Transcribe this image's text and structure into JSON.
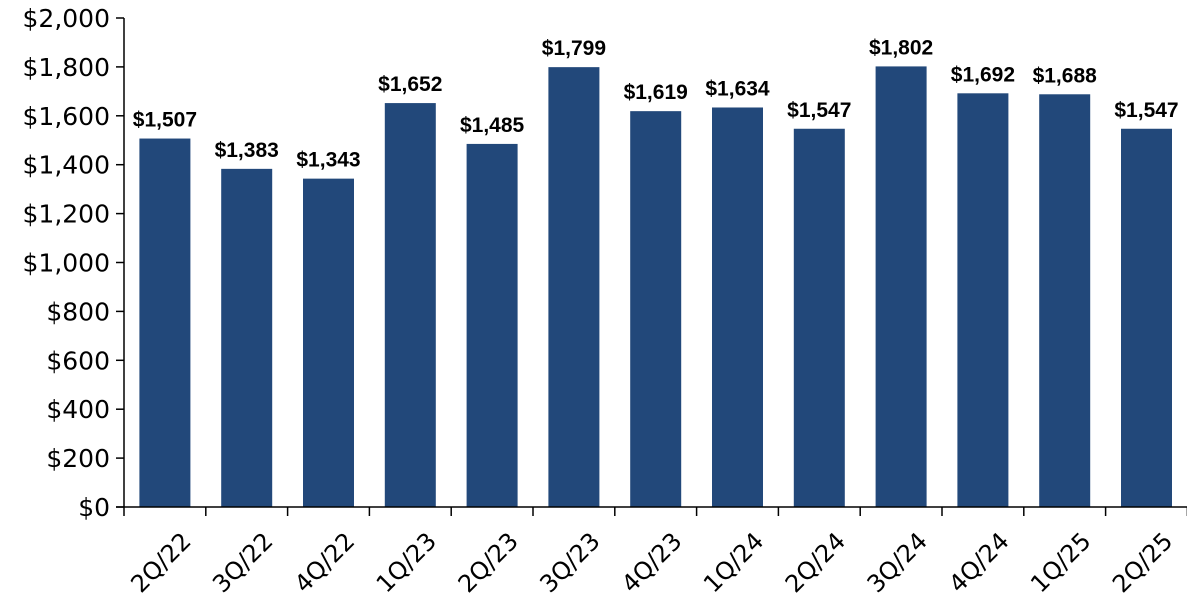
{
  "chart_data": {
    "type": "bar",
    "categories": [
      "2Q/22",
      "3Q/22",
      "4Q/22",
      "1Q/23",
      "2Q/23",
      "3Q/23",
      "4Q/23",
      "1Q/24",
      "2Q/24",
      "3Q/24",
      "4Q/24",
      "1Q/25",
      "2Q/25"
    ],
    "values": [
      1507,
      1383,
      1343,
      1652,
      1485,
      1799,
      1619,
      1634,
      1547,
      1802,
      1692,
      1688,
      1547
    ],
    "data_labels": [
      "$1,507",
      "$1,383",
      "$1,343",
      "$1,652",
      "$1,485",
      "$1,799",
      "$1,619",
      "$1,634",
      "$1,547",
      "$1,802",
      "$1,692",
      "$1,688",
      "$1,547"
    ],
    "y_tick_labels": [
      "$0",
      "$200",
      "$400",
      "$600",
      "$800",
      "$1,000",
      "$1,200",
      "$1,400",
      "$1,600",
      "$1,800",
      "$2,000"
    ],
    "y_ticks": [
      0,
      200,
      400,
      600,
      800,
      1000,
      1200,
      1400,
      1600,
      1800,
      2000
    ],
    "ylim": [
      0,
      2000
    ],
    "title": "",
    "xlabel": "",
    "ylabel": "",
    "grid": false,
    "bar_color": "#22487a"
  }
}
